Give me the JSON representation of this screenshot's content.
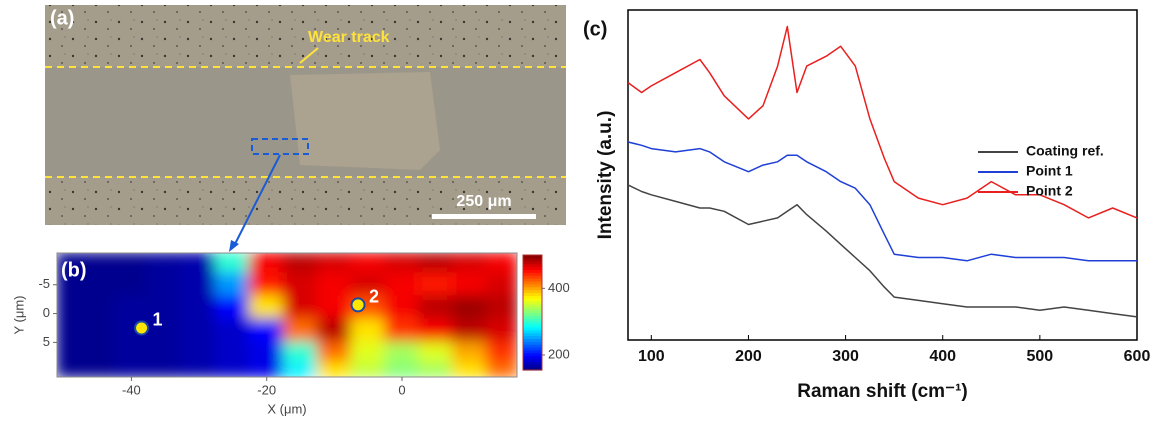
{
  "micrograph": {
    "label": "(a)",
    "annotation": "Wear track",
    "scale_bar": "250 μm"
  },
  "chart_data": [
    {
      "type": "heatmap",
      "label": "(b)",
      "x_label": "X (μm)",
      "y_label": "Y (μm)",
      "x": [
        -50,
        -45,
        -40,
        -35,
        -30,
        -25,
        -20,
        -15,
        -10,
        -5,
        0,
        5,
        10,
        15
      ],
      "y": [
        -9,
        -5,
        -1,
        3,
        7,
        10
      ],
      "z": [
        [
          160,
          160,
          160,
          165,
          170,
          300,
          460,
          480,
          470,
          460,
          470,
          480,
          470,
          460
        ],
        [
          160,
          160,
          160,
          165,
          170,
          250,
          450,
          470,
          460,
          470,
          460,
          450,
          460,
          470
        ],
        [
          160,
          160,
          165,
          165,
          170,
          200,
          380,
          470,
          460,
          430,
          460,
          480,
          490,
          480
        ],
        [
          160,
          160,
          165,
          165,
          170,
          180,
          200,
          420,
          480,
          380,
          440,
          460,
          480,
          470
        ],
        [
          160,
          160,
          165,
          165,
          170,
          180,
          190,
          300,
          420,
          360,
          340,
          360,
          400,
          440
        ],
        [
          160,
          160,
          165,
          165,
          170,
          180,
          190,
          280,
          380,
          350,
          330,
          340,
          380,
          420
        ]
      ],
      "xlim": [
        -51,
        17
      ],
      "xticks": [
        -40,
        -20,
        0
      ],
      "ylim": [
        -10.5,
        11
      ],
      "yticks": [
        -5,
        0,
        5
      ],
      "y_inverted": true,
      "colormap": "jet",
      "clim": [
        155,
        500
      ],
      "colorbar_ticks": [
        200,
        400
      ],
      "points": [
        {
          "label": "1",
          "x": -38.5,
          "y": 2.5
        },
        {
          "label": "2",
          "x": -6.5,
          "y": -1.5
        }
      ]
    },
    {
      "type": "line",
      "label": "(c)",
      "x_label": "Raman shift (cm⁻¹)",
      "y_label": "Intensity (a.u.)",
      "x": [
        76,
        90,
        100,
        125,
        150,
        160,
        175,
        200,
        215,
        230,
        240,
        250,
        260,
        280,
        295,
        310,
        325,
        340,
        350,
        375,
        400,
        425,
        450,
        475,
        500,
        525,
        550,
        575,
        600
      ],
      "series": [
        {
          "name": "Coating ref.",
          "color": "#444444",
          "values": [
            47,
            45,
            44,
            42,
            40,
            40,
            39,
            35,
            36,
            37,
            39,
            41,
            38,
            33,
            29,
            25,
            21,
            16,
            13,
            12,
            11,
            10,
            10,
            10,
            9,
            10,
            9,
            8,
            7
          ]
        },
        {
          "name": "Point 1",
          "color": "#1f3fd6",
          "values": [
            60,
            59,
            58,
            57,
            58,
            57,
            54,
            51,
            53,
            54,
            56,
            56,
            54,
            51,
            48,
            46,
            41,
            32,
            26,
            25,
            25,
            24,
            26,
            25,
            25,
            25,
            24,
            24,
            24
          ]
        },
        {
          "name": "Point 2",
          "color": "#e8201e",
          "values": [
            78,
            75,
            77,
            81,
            85,
            81,
            74,
            67,
            71,
            83,
            95,
            75,
            83,
            86,
            89,
            83,
            67,
            55,
            48,
            43,
            41,
            43,
            48,
            44,
            44,
            41,
            37,
            40,
            37
          ]
        }
      ],
      "xlim": [
        76,
        600
      ],
      "xticks": [
        100,
        200,
        300,
        400,
        500,
        600
      ],
      "ylim": [
        0,
        100
      ],
      "legend": "right"
    }
  ]
}
